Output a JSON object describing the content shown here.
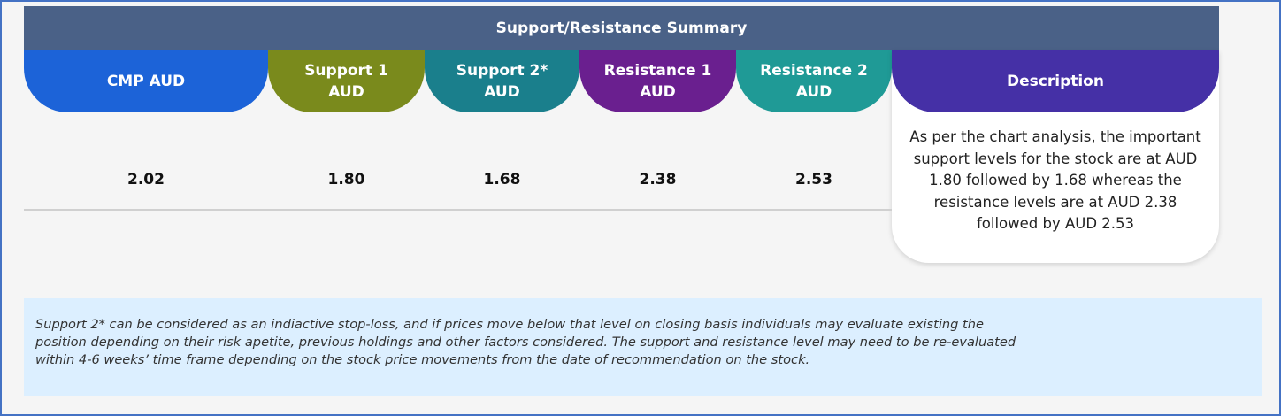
{
  "title": "Support/Resistance Summary",
  "columns": [
    {
      "label_line1": "CMP AUD",
      "label_line2": "",
      "value": "2.02",
      "color": "#1c63d8"
    },
    {
      "label_line1": "Support 1",
      "label_line2": "AUD",
      "value": "1.80",
      "color": "#7a8a1c"
    },
    {
      "label_line1": "Support 2*",
      "label_line2": "AUD",
      "value": "1.68",
      "color": "#1a7f8c"
    },
    {
      "label_line1": "Resistance 1",
      "label_line2": "AUD",
      "value": "2.38",
      "color": "#6a1f8f"
    },
    {
      "label_line1": "Resistance 2",
      "label_line2": "AUD",
      "value": "2.53",
      "color": "#1f9a96"
    }
  ],
  "description": {
    "label": "Description",
    "color": "#4530a6",
    "text": "As per the chart analysis, the important support levels for the stock are at AUD 1.80 followed by 1.68 whereas the resistance levels are at AUD 2.38 followed by AUD 2.53"
  },
  "note": {
    "lines": [
      "Support 2* can be considered as an indiactive stop-loss, and if prices move below that level on closing basis individuals may evaluate existing the",
      "position depending on their risk apetite, previous holdings and other factors considered. The support and resistance level may need to be re-evaluated",
      "within 4-6 weeks’ time frame depending on the stock price movements from  the date of recommendation on the stock."
    ]
  }
}
